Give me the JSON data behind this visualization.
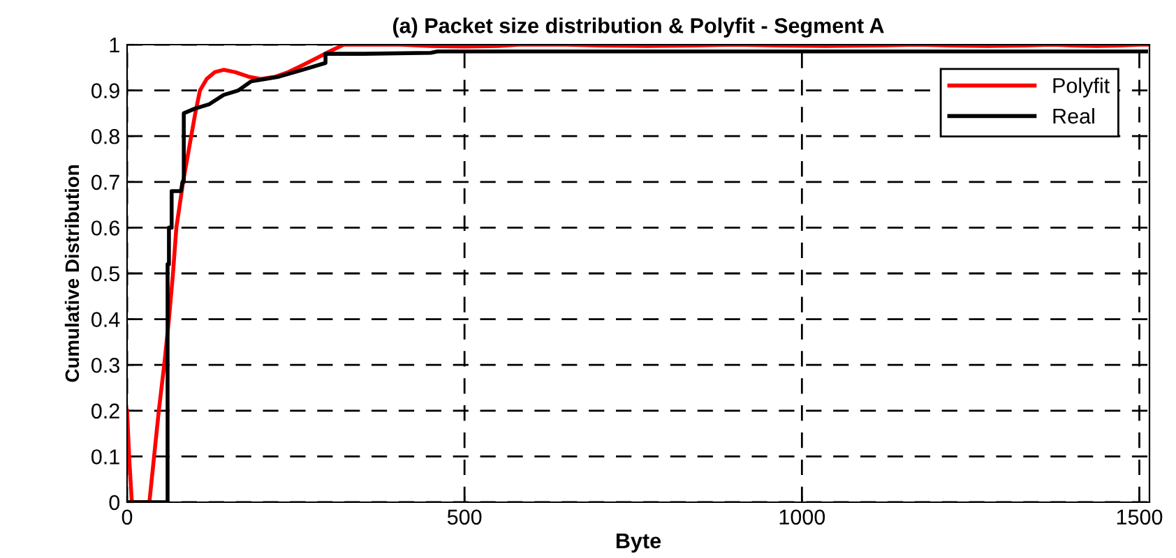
{
  "chart_data": {
    "type": "line",
    "title": "(a) Packet size distribution & Polyfit - Segment A",
    "xlabel": "Byte",
    "ylabel": "Cumulative Distribution",
    "series": [
      {
        "name": "Polyfit",
        "color": "#ff0000",
        "x": [
          0,
          3,
          7,
          15,
          25,
          33,
          40,
          47,
          55,
          62,
          68,
          73,
          78,
          83,
          89,
          95,
          101,
          108,
          118,
          130,
          143,
          160,
          180,
          198,
          220,
          239,
          260,
          280,
          300,
          321,
          340,
          380,
          405,
          450,
          500,
          550,
          580,
          650,
          700,
          770,
          840,
          900,
          965,
          1035,
          1105,
          1170,
          1220,
          1275,
          1330,
          1370,
          1403,
          1437,
          1471,
          1500,
          1512
        ],
        "values": [
          0.2,
          0.1,
          0.0,
          0.0,
          0.0,
          0.0,
          0.1,
          0.2,
          0.3,
          0.4,
          0.5,
          0.6,
          0.65,
          0.7,
          0.75,
          0.8,
          0.85,
          0.9,
          0.925,
          0.94,
          0.945,
          0.94,
          0.93,
          0.925,
          0.93,
          0.94,
          0.955,
          0.97,
          0.985,
          1.0,
          1.0,
          1.0,
          1.0,
          0.997,
          0.996,
          0.997,
          1.0,
          1.0,
          0.998,
          0.997,
          0.998,
          1.0,
          0.998,
          0.997,
          0.998,
          1.0,
          0.998,
          0.997,
          0.998,
          1.0,
          0.998,
          0.997,
          0.998,
          1.0,
          1.0
        ]
      },
      {
        "name": "Real",
        "color": "#000000",
        "x": [
          0,
          60,
          60,
          62,
          62,
          66,
          66,
          80,
          82,
          84,
          84,
          100,
          122,
          143,
          165,
          184,
          205,
          225,
          260,
          294,
          294,
          350,
          450,
          460,
          1510
        ],
        "values": [
          0,
          0,
          0.52,
          0.52,
          0.6,
          0.6,
          0.68,
          0.68,
          0.7,
          0.7,
          0.85,
          0.86,
          0.87,
          0.89,
          0.9,
          0.92,
          0.925,
          0.93,
          0.945,
          0.96,
          0.98,
          0.98,
          0.982,
          0.985,
          0.985
        ]
      }
    ],
    "xlim": [
      0,
      1515
    ],
    "ylim": [
      0,
      1
    ],
    "xticks": [
      0,
      500,
      1000,
      1500
    ],
    "yticks": [
      0,
      0.1,
      0.2,
      0.3,
      0.4,
      0.5,
      0.6,
      0.7,
      0.8,
      0.9,
      1
    ],
    "grid": true,
    "legend": "top right",
    "line_style": "solid",
    "marker": "none"
  }
}
